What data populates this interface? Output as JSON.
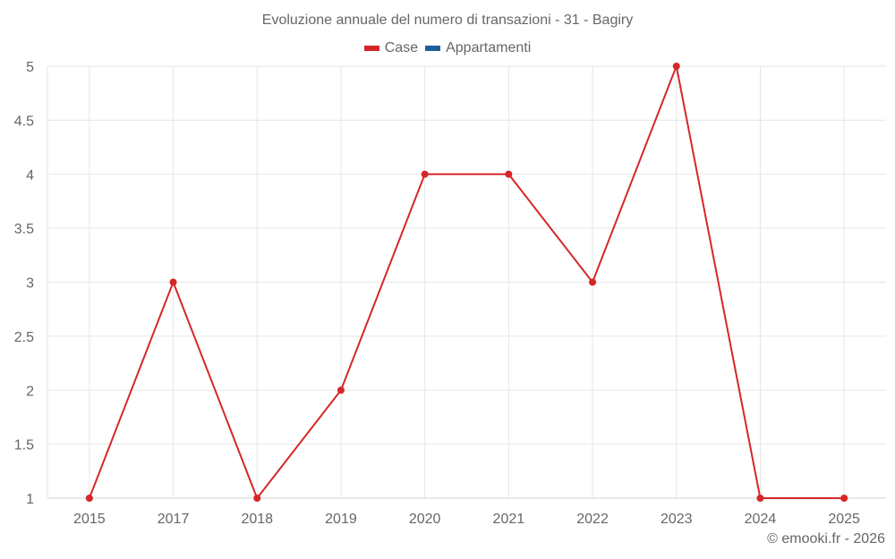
{
  "chart": {
    "title": "Evoluzione annuale del numero di transazioni - 31 - Bagiry",
    "credits": "© emooki.fr - 2026",
    "legend": [
      {
        "label": "Case",
        "color": "#d62728"
      },
      {
        "label": "Appartamenti",
        "color": "#1f5f99"
      }
    ]
  },
  "chart_data": {
    "type": "line",
    "title": "Evoluzione annuale del numero di transazioni - 31 - Bagiry",
    "xlabel": "",
    "ylabel": "",
    "categories": [
      "2015",
      "2017",
      "2018",
      "2019",
      "2020",
      "2021",
      "2022",
      "2023",
      "2024",
      "2025"
    ],
    "series": [
      {
        "name": "Case",
        "color": "#d62728",
        "values": [
          1,
          3,
          1,
          2,
          4,
          4,
          3,
          5,
          1,
          1
        ]
      },
      {
        "name": "Appartamenti",
        "color": "#1f5f99",
        "values": []
      }
    ],
    "ylim": [
      1,
      5
    ],
    "yticks": [
      "1",
      "1.5",
      "2",
      "2.5",
      "3",
      "3.5",
      "4",
      "4.5",
      "5"
    ],
    "grid": true,
    "legend_position": "top-center"
  }
}
